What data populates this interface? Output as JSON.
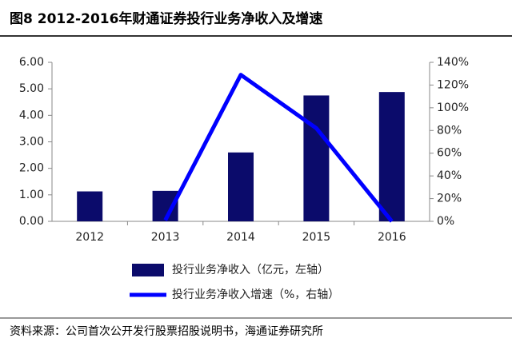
{
  "chart_data": {
    "type": "bar-line",
    "title": "图8  2012-2016年财通证券投行业务净收入及增速",
    "source": "资料来源：公司首次公开发行股票招股说明书，海通证券研究所",
    "categories": [
      "2012",
      "2013",
      "2014",
      "2015",
      "2016"
    ],
    "series": [
      {
        "name": "投行业务净收入（亿元，左轴）",
        "type": "bar",
        "color": "#0b0b6b",
        "values": [
          1.13,
          1.15,
          2.6,
          4.75,
          4.88
        ]
      },
      {
        "name": "投行业务净收入增速（%，右轴）",
        "type": "line",
        "axis": "y2",
        "color": "#0000ff",
        "values": [
          null,
          1,
          129,
          82,
          0
        ]
      }
    ],
    "ylim": [
      0,
      6
    ],
    "yticks": [
      {
        "value": 0,
        "label": "0.00"
      },
      {
        "value": 1,
        "label": "1.00"
      },
      {
        "value": 2,
        "label": "2.00"
      },
      {
        "value": 3,
        "label": "3.00"
      },
      {
        "value": 4,
        "label": "4.00"
      },
      {
        "value": 5,
        "label": "5.00"
      },
      {
        "value": 6,
        "label": "6.00"
      }
    ],
    "y2lim": [
      0,
      140
    ],
    "y2ticks": [
      {
        "value": 0,
        "label": "0%"
      },
      {
        "value": 20,
        "label": "20%"
      },
      {
        "value": 40,
        "label": "40%"
      },
      {
        "value": 60,
        "label": "60%"
      },
      {
        "value": 80,
        "label": "80%"
      },
      {
        "value": 100,
        "label": "100%"
      },
      {
        "value": 120,
        "label": "120%"
      },
      {
        "value": 140,
        "label": "140%"
      }
    ]
  }
}
